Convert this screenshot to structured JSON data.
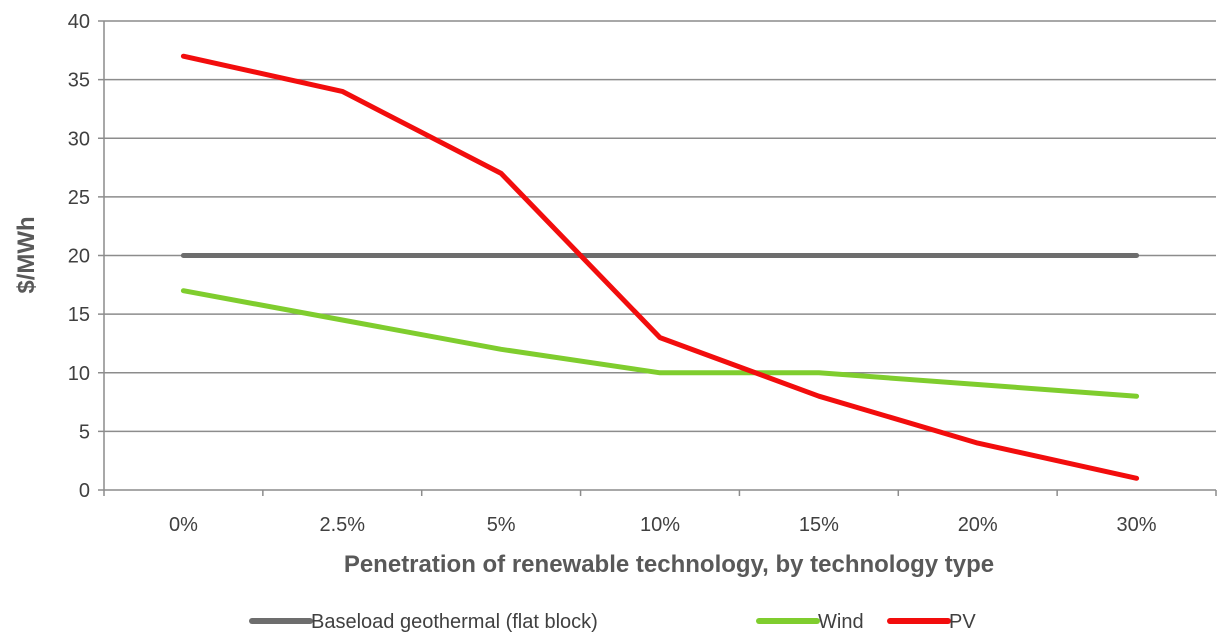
{
  "chart_data": {
    "type": "line",
    "categories": [
      "0%",
      "2.5%",
      "5%",
      "10%",
      "15%",
      "20%",
      "30%"
    ],
    "series": [
      {
        "name": "Baseload geothermal (flat block)",
        "color": "#6d6d6d",
        "values": [
          20,
          20,
          20,
          20,
          20,
          20,
          20
        ]
      },
      {
        "name": "Wind",
        "color": "#7fcd2e",
        "values": [
          17,
          14.5,
          12,
          10,
          10,
          9,
          8
        ]
      },
      {
        "name": "PV",
        "color": "#f20d0d",
        "values": [
          37,
          34,
          27,
          13,
          8,
          4,
          1
        ]
      }
    ],
    "xlabel": "Penetration of renewable technology, by technology type",
    "ylabel": "$/MWh",
    "ylim": [
      0,
      40
    ],
    "yticks": [
      0,
      5,
      10,
      15,
      20,
      25,
      30,
      35,
      40
    ],
    "grid": true,
    "legend_position": "bottom"
  }
}
